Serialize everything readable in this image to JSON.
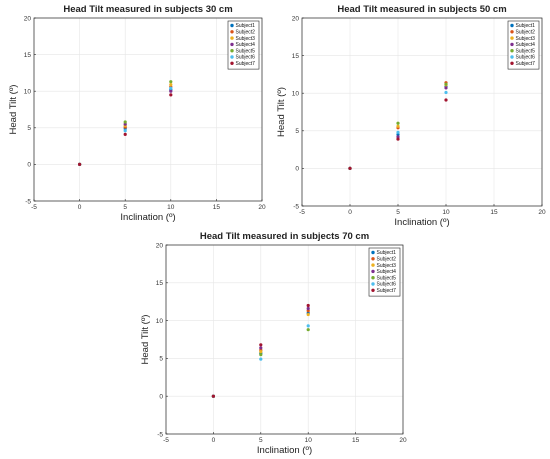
{
  "chart_data": [
    {
      "type": "scatter",
      "title": "Head Tilt measured in subjects 30 cm",
      "xlabel": "Inclination (º)",
      "ylabel": "Head Tilt (º)",
      "xlim": [
        -5,
        20
      ],
      "ylim": [
        -5,
        20
      ],
      "xticks": [
        -5,
        0,
        5,
        10,
        15,
        20
      ],
      "yticks": [
        -5,
        0,
        5,
        10,
        15,
        20
      ],
      "grid": true,
      "legend_position": "top-right",
      "series": [
        {
          "name": "Subject1",
          "color": "#0072BD",
          "x": [
            0,
            5,
            10
          ],
          "y": [
            0,
            4.9,
            10.2
          ]
        },
        {
          "name": "Subject2",
          "color": "#D95319",
          "x": [
            0,
            5,
            10
          ],
          "y": [
            0,
            5.1,
            10.6
          ]
        },
        {
          "name": "Subject3",
          "color": "#EDB120",
          "x": [
            0,
            5,
            10
          ],
          "y": [
            0,
            5.3,
            10.9
          ]
        },
        {
          "name": "Subject4",
          "color": "#7E2F8E",
          "x": [
            0,
            5,
            10
          ],
          "y": [
            0,
            5.5,
            10.0
          ]
        },
        {
          "name": "Subject5",
          "color": "#77AC30",
          "x": [
            0,
            5,
            10
          ],
          "y": [
            0,
            5.8,
            11.3
          ]
        },
        {
          "name": "Subject6",
          "color": "#4DBEEE",
          "x": [
            0,
            5,
            10
          ],
          "y": [
            0,
            4.6,
            10.4
          ]
        },
        {
          "name": "Subject7",
          "color": "#A2142F",
          "x": [
            0,
            5,
            10
          ],
          "y": [
            0,
            4.1,
            9.5
          ]
        }
      ]
    },
    {
      "type": "scatter",
      "title": "Head Tilt measured in subjects 50 cm",
      "xlabel": "Inclination (º)",
      "ylabel": "Head Tilt (º)",
      "xlim": [
        -5,
        20
      ],
      "ylim": [
        -5,
        20
      ],
      "xticks": [
        -5,
        0,
        5,
        10,
        15,
        20
      ],
      "yticks": [
        -5,
        0,
        5,
        10,
        15,
        20
      ],
      "grid": true,
      "legend_position": "top-right",
      "series": [
        {
          "name": "Subject1",
          "color": "#0072BD",
          "x": [
            0,
            5,
            10
          ],
          "y": [
            0,
            4.5,
            10.9
          ]
        },
        {
          "name": "Subject2",
          "color": "#D95319",
          "x": [
            0,
            5,
            10
          ],
          "y": [
            0,
            5.4,
            11.4
          ]
        },
        {
          "name": "Subject3",
          "color": "#EDB120",
          "x": [
            0,
            5,
            10
          ],
          "y": [
            0,
            5.6,
            11.1
          ]
        },
        {
          "name": "Subject4",
          "color": "#7E2F8E",
          "x": [
            0,
            5,
            10
          ],
          "y": [
            0,
            4.2,
            10.7
          ]
        },
        {
          "name": "Subject5",
          "color": "#77AC30",
          "x": [
            0,
            5,
            10
          ],
          "y": [
            0,
            6.0,
            11.2
          ]
        },
        {
          "name": "Subject6",
          "color": "#4DBEEE",
          "x": [
            0,
            5,
            10
          ],
          "y": [
            0,
            4.8,
            10.1
          ]
        },
        {
          "name": "Subject7",
          "color": "#A2142F",
          "x": [
            0,
            5,
            10
          ],
          "y": [
            0,
            3.9,
            9.1
          ]
        }
      ]
    },
    {
      "type": "scatter",
      "title": "Head Tilt measured in subjects 70 cm",
      "xlabel": "Inclination (º)",
      "ylabel": "Head Tilt (º)",
      "xlim": [
        -5,
        20
      ],
      "ylim": [
        -5,
        20
      ],
      "xticks": [
        -5,
        0,
        5,
        10,
        15,
        20
      ],
      "yticks": [
        -5,
        0,
        5,
        10,
        15,
        20
      ],
      "grid": true,
      "legend_position": "top-right",
      "series": [
        {
          "name": "Subject1",
          "color": "#0072BD",
          "x": [
            0,
            5,
            10
          ],
          "y": [
            0,
            5.7,
            11.0
          ]
        },
        {
          "name": "Subject2",
          "color": "#D95319",
          "x": [
            0,
            5,
            10
          ],
          "y": [
            0,
            6.1,
            11.3
          ]
        },
        {
          "name": "Subject3",
          "color": "#EDB120",
          "x": [
            0,
            5,
            10
          ],
          "y": [
            0,
            5.9,
            10.8
          ]
        },
        {
          "name": "Subject4",
          "color": "#7E2F8E",
          "x": [
            0,
            5,
            10
          ],
          "y": [
            0,
            6.4,
            11.6
          ]
        },
        {
          "name": "Subject5",
          "color": "#77AC30",
          "x": [
            0,
            5,
            10
          ],
          "y": [
            0,
            5.5,
            8.8
          ]
        },
        {
          "name": "Subject6",
          "color": "#4DBEEE",
          "x": [
            0,
            5,
            10
          ],
          "y": [
            0,
            4.9,
            9.3
          ]
        },
        {
          "name": "Subject7",
          "color": "#A2142F",
          "x": [
            0,
            5,
            10
          ],
          "y": [
            0,
            6.8,
            12.0
          ]
        }
      ]
    }
  ]
}
